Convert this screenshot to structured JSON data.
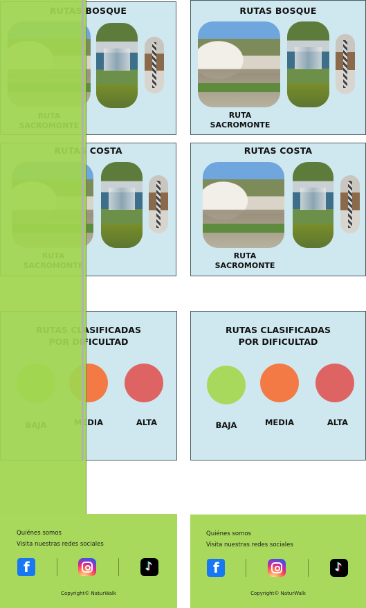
{
  "app": {
    "brand": "NaturWalk"
  },
  "sections": {
    "bosque": {
      "title": "RUTAS BOSQUE"
    },
    "costa": {
      "title": "RUTAS COSTA"
    }
  },
  "route_card": {
    "label_line1": "RUTA",
    "label_line2": "SACROMONTE"
  },
  "difficulty": {
    "title_line1": "RUTAS CLASIFICADAS",
    "title_line2": "POR DIFICULTAD",
    "levels": [
      {
        "label": "BAJA",
        "color": "#a8d95c"
      },
      {
        "label": "MEDIA",
        "color": "#f47a45"
      },
      {
        "label": "ALTA",
        "color": "#de6464"
      }
    ]
  },
  "footer": {
    "about": "Quiénes somos",
    "social_prompt": "Visita nuestras redes sociales",
    "social_icons": [
      "facebook-icon",
      "instagram-icon",
      "tiktok-icon"
    ],
    "copyright": "Copyright© NaturWalk"
  },
  "colors": {
    "panel_bg": "#cfe8ef",
    "footer_bg": "#a8d95c",
    "overlay": "#a0d550"
  }
}
